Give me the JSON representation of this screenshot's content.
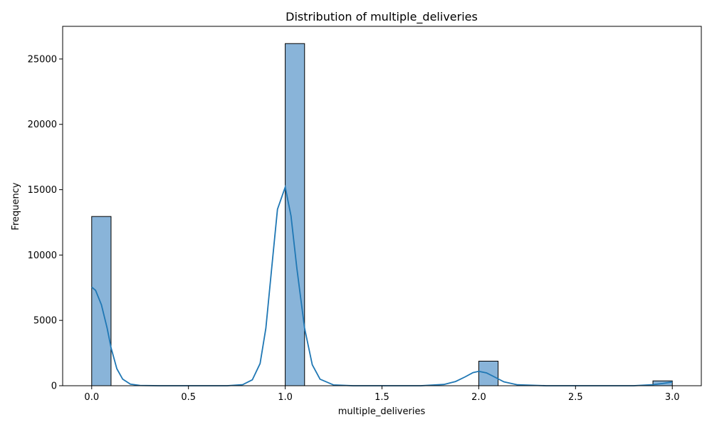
{
  "chart_data": {
    "type": "bar",
    "title": "Distribution of multiple_deliveries",
    "xlabel": "multiple_deliveries",
    "ylabel": "Frequency",
    "xlim": [
      -0.15,
      3.15
    ],
    "ylim": [
      0,
      27500
    ],
    "xticks": [
      "0.0",
      "0.5",
      "1.0",
      "1.5",
      "2.0",
      "2.5",
      "3.0"
    ],
    "yticks": [
      "0",
      "5000",
      "10000",
      "15000",
      "20000",
      "25000"
    ],
    "grid": false,
    "bin_width": 0.1,
    "bins": [
      {
        "x0": 0.0,
        "x1": 0.1,
        "count": 12950
      },
      {
        "x0": 1.0,
        "x1": 1.1,
        "count": 26180
      },
      {
        "x0": 2.0,
        "x1": 2.1,
        "count": 1880
      },
      {
        "x0": 2.9,
        "x1": 3.0,
        "count": 370
      }
    ],
    "kde": {
      "x": [
        0.0,
        0.02,
        0.05,
        0.08,
        0.1,
        0.13,
        0.16,
        0.2,
        0.25,
        0.35,
        0.5,
        0.7,
        0.78,
        0.83,
        0.87,
        0.9,
        0.93,
        0.96,
        1.0,
        1.03,
        1.06,
        1.1,
        1.14,
        1.18,
        1.25,
        1.35,
        1.5,
        1.7,
        1.82,
        1.88,
        1.93,
        1.97,
        2.0,
        2.04,
        2.08,
        2.13,
        2.2,
        2.35,
        2.6,
        2.8,
        2.9,
        2.95,
        3.0
      ],
      "y": [
        7550,
        7300,
        6200,
        4400,
        2900,
        1300,
        500,
        120,
        20,
        0,
        0,
        0,
        80,
        450,
        1700,
        4400,
        9000,
        13500,
        15200,
        13000,
        9000,
        4400,
        1600,
        500,
        60,
        0,
        0,
        0,
        100,
        320,
        680,
        1000,
        1100,
        980,
        680,
        300,
        70,
        0,
        0,
        0,
        80,
        170,
        290
      ]
    },
    "colors": {
      "bar_fill": "#89b4d9",
      "bar_edge": "#000000",
      "kde_line": "#1f77b4"
    }
  }
}
